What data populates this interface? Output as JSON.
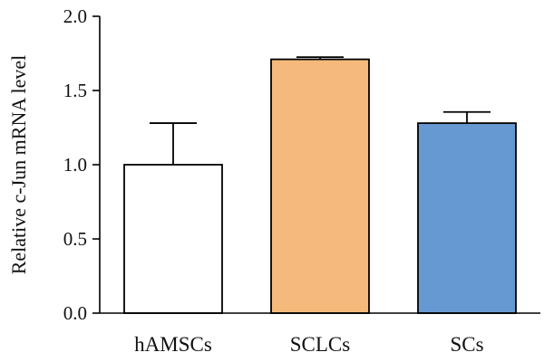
{
  "chart_data": {
    "type": "bar",
    "title": "",
    "xlabel": "",
    "ylabel": "Relative c-Jun mRNA level",
    "ylim": [
      0,
      2.0
    ],
    "yticks": [
      "0.0",
      "0.5",
      "1.0",
      "1.5",
      "2.0"
    ],
    "ytick_values": [
      0.0,
      0.5,
      1.0,
      1.5,
      2.0
    ],
    "categories": [
      "hAMSCs",
      "SCLCs",
      "SCs"
    ],
    "values": [
      1.0,
      1.71,
      1.28
    ],
    "error_upper": [
      0.28,
      0.015,
      0.075
    ],
    "colors": [
      "#ffffff",
      "#f4b97b",
      "#6699d1"
    ],
    "grid": false,
    "legend": "none"
  }
}
